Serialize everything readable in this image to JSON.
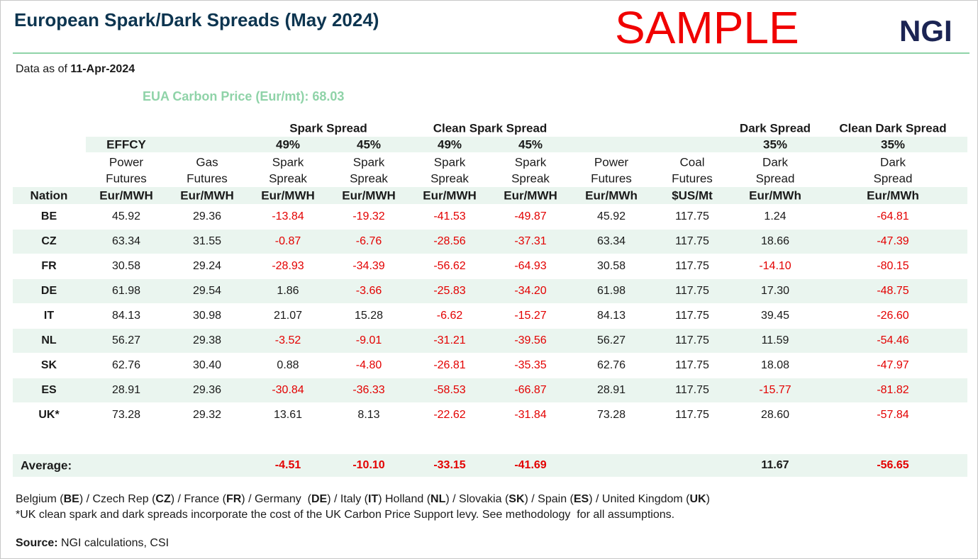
{
  "header": {
    "title": "European Spark/Dark Spreads (May 2024)",
    "watermark": "SAMPLE",
    "logo": "NGI"
  },
  "data_as_of": {
    "label": "Data as of",
    "date": "11-Apr-2024"
  },
  "eua_carbon_price": "EUA Carbon Price (Eur/mt): 68.03",
  "table": {
    "header_groups": [
      "Spark Spread",
      "Clean Spark Spread",
      "Dark Spread",
      "Clean Dark Spread"
    ],
    "columns": [
      {
        "unit": "Nation"
      },
      {
        "efficiency": "EFFCY",
        "label": [
          "Power",
          "Futures"
        ],
        "unit": "Eur/MWH"
      },
      {
        "label": [
          "Gas",
          "Futures"
        ],
        "unit": "Eur/MWH"
      },
      {
        "efficiency": "49%",
        "label": [
          "Spark",
          "Spreak"
        ],
        "unit": "Eur/MWH"
      },
      {
        "efficiency": "45%",
        "label": [
          "Spark",
          "Spreak"
        ],
        "unit": "Eur/MWH"
      },
      {
        "efficiency": "49%",
        "label": [
          "Spark",
          "Spreak"
        ],
        "unit": "Eur/MWH"
      },
      {
        "efficiency": "45%",
        "label": [
          "Spark",
          "Spreak"
        ],
        "unit": "Eur/MWH"
      },
      {
        "label": [
          "Power",
          "Futures"
        ],
        "unit": "Eur/MWh"
      },
      {
        "label": [
          "Coal",
          "Futures"
        ],
        "unit": "$US/Mt"
      },
      {
        "efficiency": "35%",
        "label": [
          "Dark",
          "Spread"
        ],
        "unit": "Eur/MWh"
      },
      {
        "efficiency": "35%",
        "label": [
          "Dark",
          "Spread"
        ],
        "unit": "Eur/MWh"
      }
    ],
    "rows": [
      [
        "BE",
        "45.92",
        "29.36",
        "-13.84",
        "-19.32",
        "-41.53",
        "-49.87",
        "45.92",
        "117.75",
        "1.24",
        "-64.81"
      ],
      [
        "CZ",
        "63.34",
        "31.55",
        "-0.87",
        "-6.76",
        "-28.56",
        "-37.31",
        "63.34",
        "117.75",
        "18.66",
        "-47.39"
      ],
      [
        "FR",
        "30.58",
        "29.24",
        "-28.93",
        "-34.39",
        "-56.62",
        "-64.93",
        "30.58",
        "117.75",
        "-14.10",
        "-80.15"
      ],
      [
        "DE",
        "61.98",
        "29.54",
        "1.86",
        "-3.66",
        "-25.83",
        "-34.20",
        "61.98",
        "117.75",
        "17.30",
        "-48.75"
      ],
      [
        "IT",
        "84.13",
        "30.98",
        "21.07",
        "15.28",
        "-6.62",
        "-15.27",
        "84.13",
        "117.75",
        "39.45",
        "-26.60"
      ],
      [
        "NL",
        "56.27",
        "29.38",
        "-3.52",
        "-9.01",
        "-31.21",
        "-39.56",
        "56.27",
        "117.75",
        "11.59",
        "-54.46"
      ],
      [
        "SK",
        "62.76",
        "30.40",
        "0.88",
        "-4.80",
        "-26.81",
        "-35.35",
        "62.76",
        "117.75",
        "18.08",
        "-47.97"
      ],
      [
        "ES",
        "28.91",
        "29.36",
        "-30.84",
        "-36.33",
        "-58.53",
        "-66.87",
        "28.91",
        "117.75",
        "-15.77",
        "-81.82"
      ],
      [
        "UK*",
        "73.28",
        "29.32",
        "13.61",
        "8.13",
        "-22.62",
        "-31.84",
        "73.28",
        "117.75",
        "28.60",
        "-57.84"
      ]
    ],
    "average": [
      "Average:",
      null,
      null,
      "-4.51",
      "-10.10",
      "-33.15",
      "-41.69",
      null,
      null,
      "11.67",
      "-56.65"
    ]
  },
  "footer": {
    "legend": [
      "Belgium (",
      "BE",
      ") / Czech Rep (",
      "CZ",
      ") / France (",
      "FR",
      ") / Germany  (",
      "DE",
      ") / Italy (",
      "IT",
      ") Holland (",
      "NL",
      ") / Slovakia (",
      "SK",
      ") / Spain (",
      "ES",
      ") / United Kingdom (",
      "UK",
      ")"
    ],
    "note": "*UK clean spark and dark spreads incorporate the cost of the UK Carbon Price Support levy. See methodology  for all assumptions.",
    "source_label": "Source:",
    "source": " NGI calculations, CSI"
  }
}
